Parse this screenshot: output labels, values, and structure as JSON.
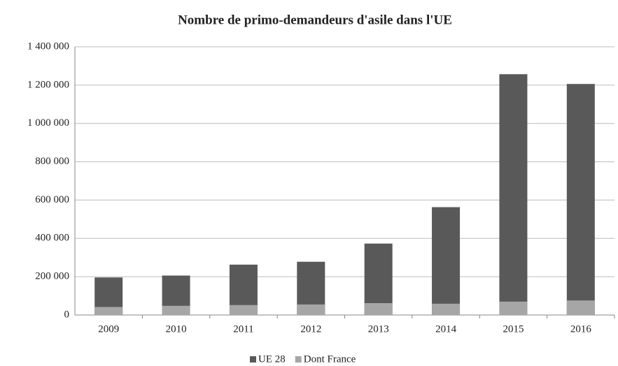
{
  "chart_data": {
    "type": "bar",
    "title": "Nombre de primo-demandeurs d'asile dans l'UE",
    "categories": [
      "2009",
      "2010",
      "2011",
      "2012",
      "2013",
      "2014",
      "2015",
      "2016"
    ],
    "series": [
      {
        "name": "UE 28",
        "color": "#595959",
        "values": [
          196000,
          206000,
          263000,
          278000,
          373000,
          563000,
          1257000,
          1206000
        ]
      },
      {
        "name": "Dont France",
        "color": "#a6a6a6",
        "values": [
          42000,
          48000,
          52000,
          55000,
          62000,
          59000,
          70000,
          76000
        ]
      }
    ],
    "ylim": [
      0,
      1400000
    ],
    "yticks": [
      0,
      {
        "value": 200000,
        "label": "200 000"
      },
      {
        "value": 400000,
        "label": "400 000"
      },
      {
        "value": 600000,
        "label": "600 000"
      },
      {
        "value": 800000,
        "label": "800 000"
      },
      {
        "value": 1000000,
        "label": "1 000 000"
      },
      {
        "value": 1200000,
        "label": "1 200 000"
      },
      {
        "value": 1400000,
        "label": "1 400 000"
      }
    ],
    "grid": true
  }
}
